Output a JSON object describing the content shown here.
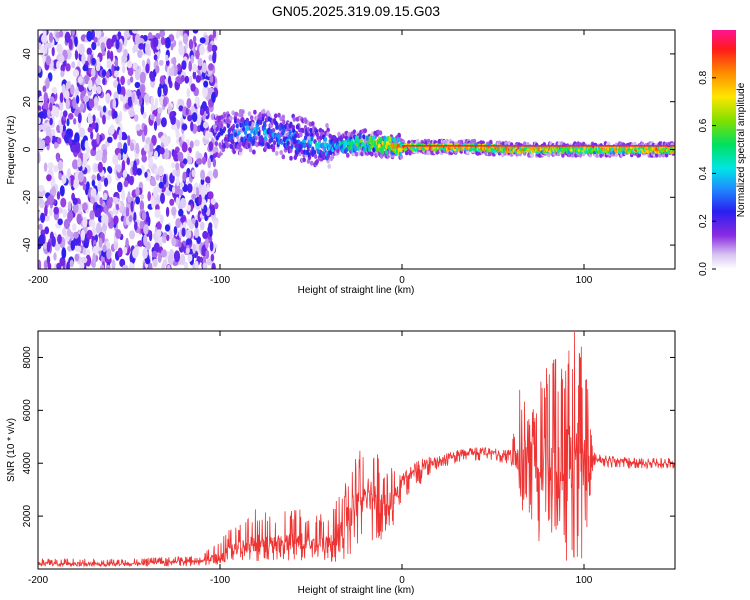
{
  "title": "GN05.2025.319.09.15.G03",
  "colorbar": {
    "label": "Normalized spectral amplitude",
    "ticks": [
      "0.0",
      "0.2",
      "0.4",
      "0.6",
      "0.8"
    ],
    "tick_values": [
      0.0,
      0.2,
      0.4,
      0.6,
      0.8
    ],
    "range": [
      0.0,
      1.0
    ]
  },
  "chart_data": [
    {
      "type": "heatmap",
      "title": "GN05.2025.319.09.15.G03",
      "xlabel": "Height of straight line (km)",
      "ylabel": "Frequency (Hz)",
      "xlim": [
        -200,
        150
      ],
      "ylim": [
        -50,
        50
      ],
      "x_ticks": [
        -200,
        -100,
        0,
        100
      ],
      "x_tick_labels": [
        "-200",
        "-100",
        "0",
        "100"
      ],
      "y_ticks": [
        -40,
        -20,
        0,
        20,
        40
      ],
      "y_tick_labels": [
        "-40",
        "-20",
        "0",
        "20",
        "40"
      ],
      "colormap": "rainbow (white-purple-blue-cyan-green-yellow-orange-red-magenta)",
      "description_points": {
        "noise_region_x": [
          -200,
          -105
        ],
        "ridge_x": [
          -100,
          -80,
          -60,
          -40,
          -20,
          0,
          20,
          40,
          60,
          80,
          100,
          120,
          150
        ],
        "ridge_freq": [
          6,
          8,
          5,
          1,
          3,
          1,
          1,
          1,
          0,
          0,
          0,
          0,
          0
        ],
        "ridge_amplitude": [
          0.35,
          0.45,
          0.4,
          0.5,
          0.7,
          0.9,
          0.95,
          0.95,
          0.9,
          0.85,
          0.8,
          0.9,
          0.95
        ]
      }
    },
    {
      "type": "line",
      "xlabel": "Height of straight line (km)",
      "ylabel": "SNR (10 * v/v)",
      "xlim": [
        -200,
        150
      ],
      "ylim": [
        0,
        9000
      ],
      "x_ticks": [
        -200,
        -100,
        0,
        100
      ],
      "x_tick_labels": [
        "-200",
        "-100",
        "0",
        "100"
      ],
      "y_ticks": [
        2000,
        4000,
        6000,
        8000
      ],
      "y_tick_labels": [
        "2000",
        "4000",
        "6000",
        "8000"
      ],
      "color": "#ee3333",
      "series": [
        {
          "name": "SNR",
          "x": [
            -200,
            -150,
            -110,
            -100,
            -90,
            -80,
            -70,
            -60,
            -50,
            -40,
            -30,
            -25,
            -20,
            -15,
            -10,
            -5,
            0,
            10,
            20,
            30,
            40,
            50,
            55,
            60,
            65,
            70,
            75,
            80,
            85,
            90,
            95,
            100,
            105,
            110,
            120,
            130,
            140,
            150
          ],
          "values": [
            200,
            200,
            300,
            500,
            800,
            1000,
            900,
            1100,
            1000,
            900,
            1800,
            2500,
            3000,
            2800,
            2400,
            2500,
            3300,
            3800,
            4100,
            4300,
            4400,
            4400,
            4300,
            4300,
            3800,
            4500,
            3600,
            4000,
            3500,
            3900,
            4200,
            3800,
            4200,
            4100,
            4100,
            4000,
            4000,
            4000
          ],
          "envelope_high": [
            400,
            400,
            500,
            1200,
            1800,
            2300,
            2200,
            2300,
            2200,
            2000,
            3500,
            4300,
            4800,
            4500,
            4000,
            3800,
            3600,
            4200,
            4300,
            4500,
            4600,
            4600,
            4500,
            4600,
            7000,
            5800,
            7200,
            8000,
            8200,
            8800,
            9000,
            8600,
            4500,
            4300,
            4250,
            4200,
            4200,
            4200
          ],
          "envelope_low": [
            100,
            100,
            100,
            200,
            300,
            300,
            300,
            300,
            300,
            200,
            400,
            600,
            800,
            900,
            1100,
            1400,
            2600,
            3200,
            3800,
            4000,
            4100,
            4100,
            4000,
            4000,
            2400,
            1600,
            800,
            1800,
            800,
            200,
            100,
            100,
            3900,
            3800,
            3800,
            3800,
            3800,
            3800
          ]
        }
      ]
    }
  ]
}
